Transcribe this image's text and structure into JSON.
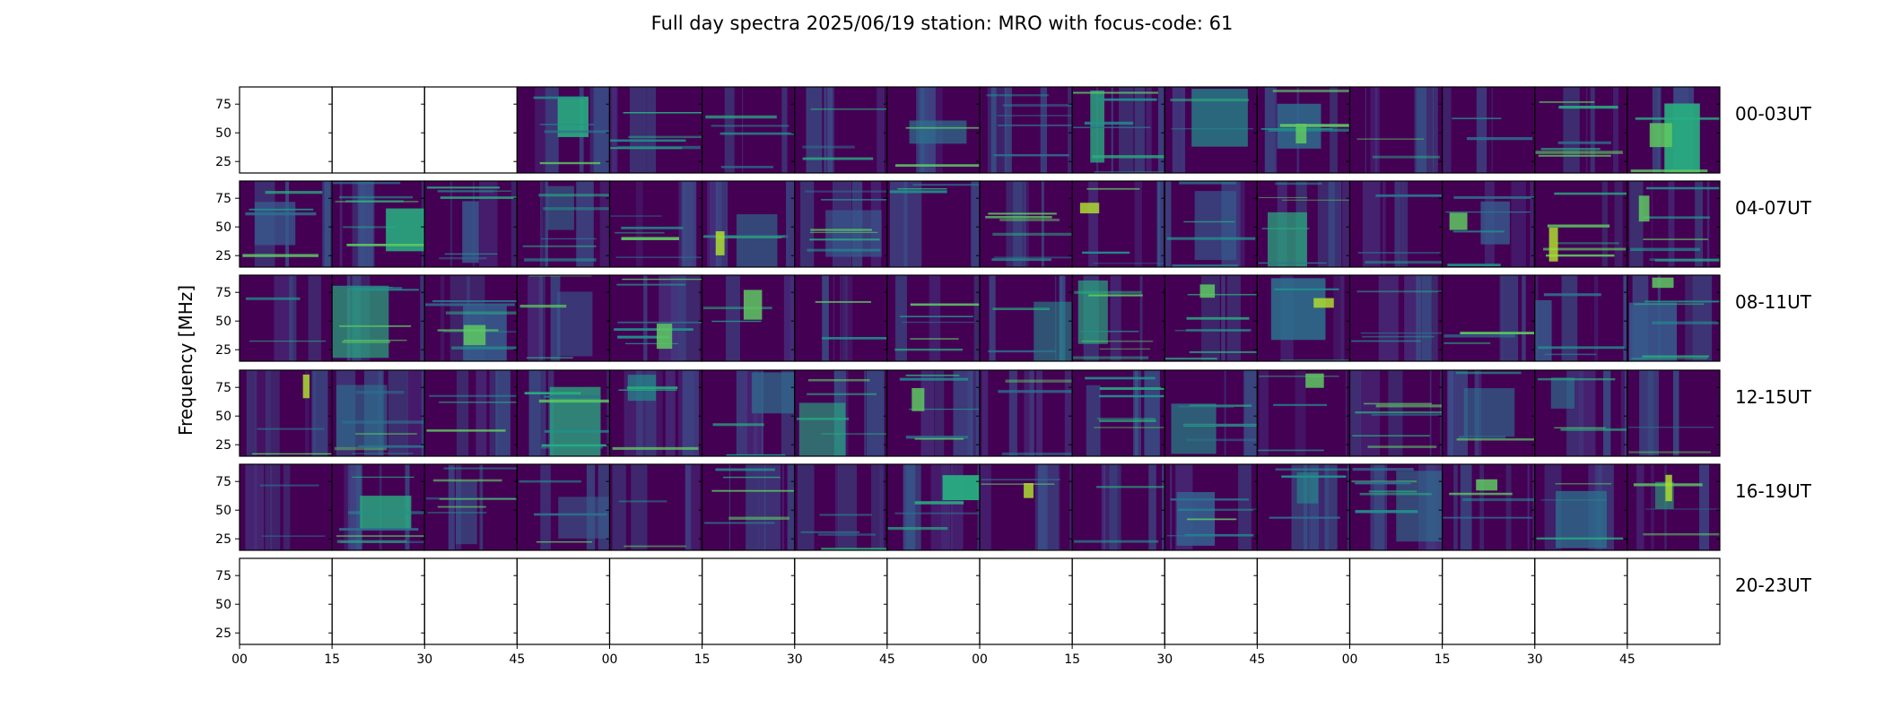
{
  "chart_data": {
    "type": "heatmap",
    "title": "Full day spectra 2025/06/19 station: MRO with focus-code: 61",
    "ylabel": "Frequency [MHz]",
    "xlabel": "",
    "ylim": [
      15,
      90
    ],
    "y_ticks": [
      "25",
      "50",
      "75"
    ],
    "x_ticks": [
      "00",
      "15",
      "30",
      "45",
      "00",
      "15",
      "30",
      "45",
      "00",
      "15",
      "30",
      "45",
      "00",
      "15",
      "30",
      "45"
    ],
    "colormap": "viridis",
    "panel_minutes": 15,
    "rows": [
      {
        "label": "00-03UT",
        "panels": [
          "empty",
          "empty",
          "empty",
          "data",
          "data",
          "data",
          "data",
          "data",
          "data",
          "data",
          "data",
          "data",
          "data",
          "data",
          "data",
          "data"
        ]
      },
      {
        "label": "04-07UT",
        "panels": [
          "data",
          "data",
          "data",
          "data",
          "data",
          "data",
          "data",
          "data",
          "data",
          "data",
          "data",
          "data",
          "data",
          "data",
          "data",
          "data"
        ]
      },
      {
        "label": "08-11UT",
        "panels": [
          "data",
          "data",
          "data",
          "data",
          "data",
          "data",
          "data",
          "data",
          "data",
          "data",
          "data",
          "data",
          "data",
          "data",
          "data",
          "data"
        ]
      },
      {
        "label": "12-15UT",
        "panels": [
          "data",
          "data",
          "data",
          "data",
          "data",
          "data",
          "data",
          "data",
          "data",
          "data",
          "data",
          "data",
          "data",
          "data",
          "data",
          "data"
        ]
      },
      {
        "label": "16-19UT",
        "panels": [
          "data",
          "data",
          "data",
          "data",
          "data",
          "data",
          "data",
          "data",
          "data",
          "data",
          "data",
          "data",
          "data",
          "data",
          "data",
          "data"
        ]
      },
      {
        "label": "20-23UT",
        "panels": [
          "empty",
          "empty",
          "empty",
          "empty",
          "empty",
          "empty",
          "empty",
          "empty",
          "empty",
          "empty",
          "empty",
          "empty",
          "empty",
          "empty",
          "empty",
          "empty"
        ]
      }
    ]
  }
}
